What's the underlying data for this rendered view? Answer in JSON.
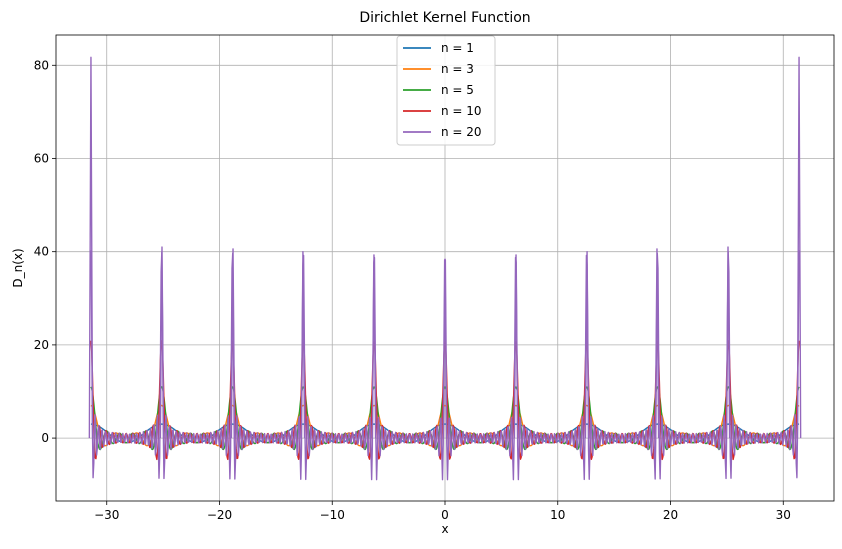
{
  "chart_data": {
    "type": "line",
    "title": "Dirichlet Kernel Function",
    "xlabel": "x",
    "ylabel": "D_n(x)",
    "xlim": [
      -34.5,
      34.5
    ],
    "ylim": [
      -13.5,
      86.5
    ],
    "x_range": [
      -31.4,
      31.4
    ],
    "xticks": [
      -30,
      -20,
      -10,
      0,
      10,
      20,
      30
    ],
    "xtick_labels": [
      "−30",
      "−20",
      "−10",
      "0",
      "10",
      "20",
      "30"
    ],
    "yticks": [
      0,
      20,
      40,
      60,
      80
    ],
    "ytick_labels": [
      "0",
      "20",
      "40",
      "60",
      "80"
    ],
    "grid": true,
    "legend_position": "top-center",
    "function": "D_n(x) = sin((n + 1/2) x) / sin(x / 2), sampled on [-31.4, 31.4]",
    "series": [
      {
        "name": "n = 1",
        "n": 1,
        "color": "#1f77b4"
      },
      {
        "name": "n = 3",
        "n": 3,
        "color": "#ff7f0e"
      },
      {
        "name": "n = 5",
        "n": 5,
        "color": "#2ca02c"
      },
      {
        "name": "n = 10",
        "n": 10,
        "color": "#d62728"
      },
      {
        "name": "n = 20",
        "n": 20,
        "color": "#9467bd"
      }
    ],
    "peaks": [
      {
        "x": -31.4,
        "y": 81.7
      },
      {
        "x": -25.1,
        "y": 41
      },
      {
        "x": -18.8,
        "y": 40.6
      },
      {
        "x": -12.6,
        "y": 40
      },
      {
        "x": -6.3,
        "y": 39.3
      },
      {
        "x": 0,
        "y": 38.4
      },
      {
        "x": 6.3,
        "y": 39.3
      },
      {
        "x": 12.6,
        "y": 40
      },
      {
        "x": 18.8,
        "y": 40.6
      },
      {
        "x": 25.1,
        "y": 41
      },
      {
        "x": 31.4,
        "y": 81.7
      }
    ]
  }
}
